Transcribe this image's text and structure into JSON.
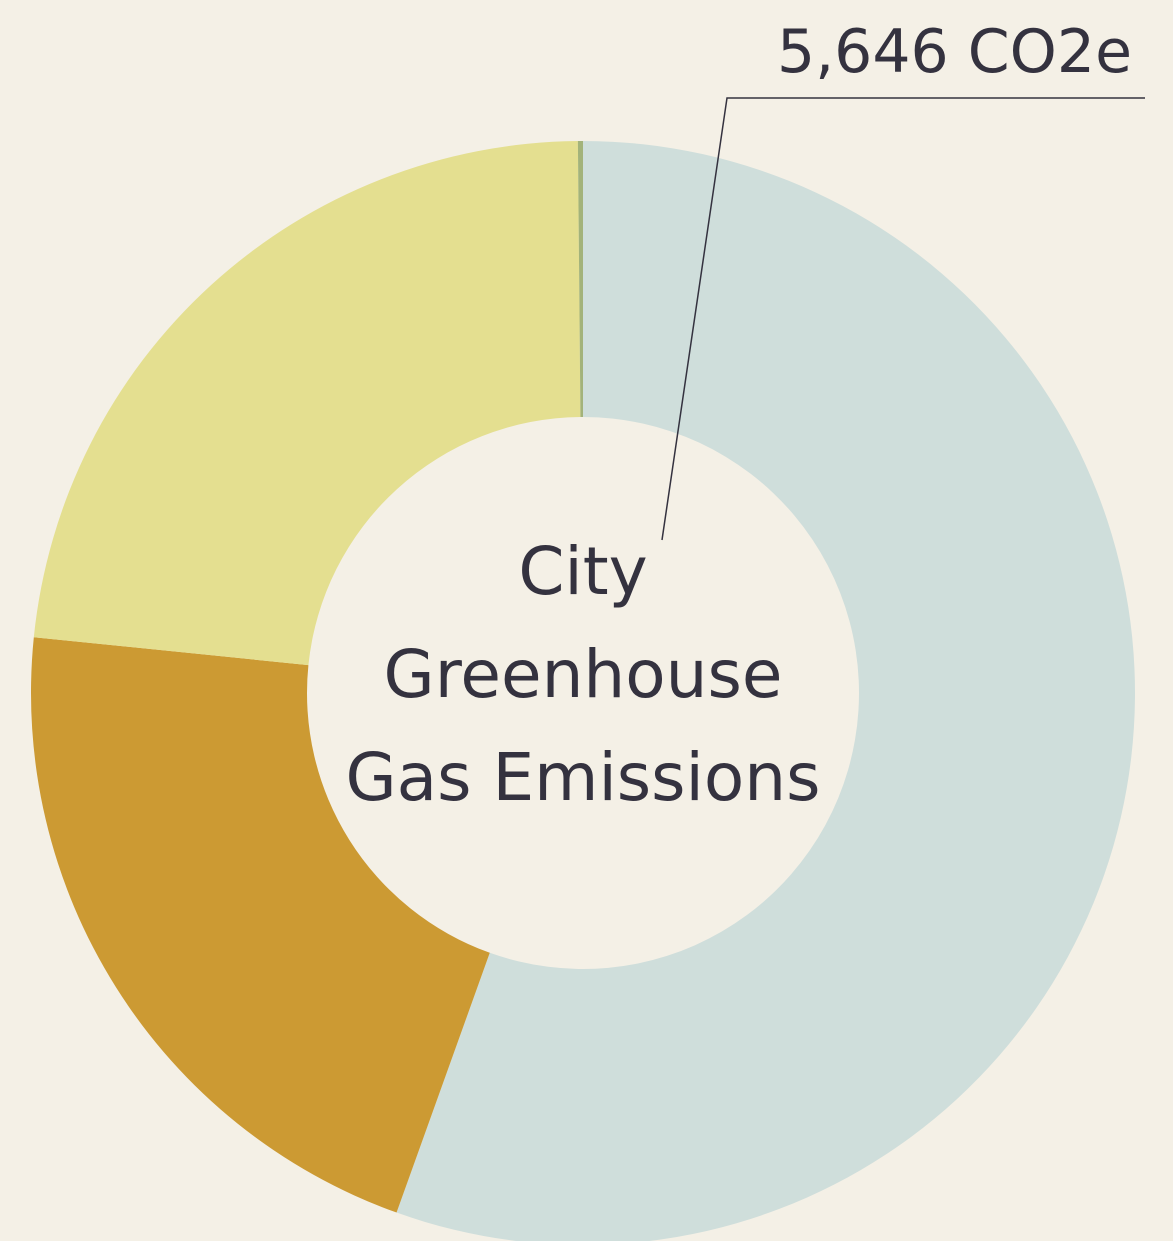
{
  "chart_data": {
    "type": "donut",
    "title": "City Greenhouse Gas Emissions",
    "values": [
      5646,
      2150,
      2365,
      15
    ],
    "value_labels": [
      "5,646 CO2e",
      null,
      null,
      null
    ],
    "colors": [
      "#cfdedb",
      "#cc9a33",
      "#e4df90",
      "#a3b37a"
    ]
  }
}
